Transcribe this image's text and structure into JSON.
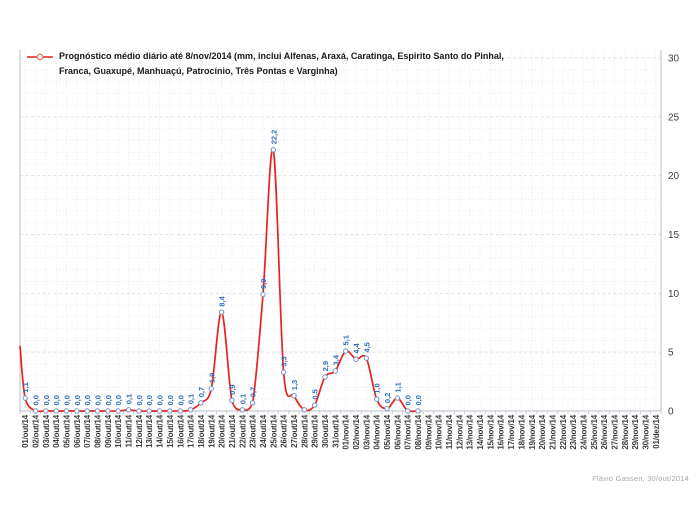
{
  "chart_data": {
    "type": "line",
    "title": "",
    "legend_position": "top-left-inside",
    "y_axis_side": "right",
    "ylim": [
      0,
      30
    ],
    "yticks": [
      0,
      5,
      10,
      15,
      20,
      25,
      30
    ],
    "grid": "vertical dotted per day, horizontal dotted per 1 unit, dashed per 5 units",
    "clipped_entry_value_at_left_edge": 5.5,
    "x_categories": [
      "01/out/14",
      "02/out/14",
      "03/out/14",
      "04/out/14",
      "05/out/14",
      "06/out/14",
      "07/out/14",
      "08/out/14",
      "09/out/14",
      "10/out/14",
      "11/out/14",
      "12/out/14",
      "13/out/14",
      "14/out/14",
      "15/out/14",
      "16/out/14",
      "17/out/14",
      "18/out/14",
      "19/out/14",
      "20/out/14",
      "21/out/14",
      "22/out/14",
      "23/out/14",
      "24/out/14",
      "25/out/14",
      "26/out/14",
      "27/out/14",
      "28/out/14",
      "29/out/14",
      "30/out/14",
      "31/out/14",
      "01/nov/14",
      "02/nov/14",
      "03/nov/14",
      "04/nov/14",
      "05/nov/14",
      "06/nov/14",
      "07/nov/14",
      "08/nov/14",
      "09/nov/14",
      "10/nov/14",
      "11/nov/14",
      "12/nov/14",
      "13/nov/14",
      "14/nov/14",
      "15/nov/14",
      "16/nov/14",
      "17/nov/14",
      "18/nov/14",
      "19/nov/14",
      "20/nov/14",
      "21/nov/14",
      "22/nov/14",
      "23/nov/14",
      "24/nov/14",
      "25/nov/14",
      "26/nov/14",
      "27/nov/14",
      "28/nov/14",
      "29/nov/14",
      "30/nov/14",
      "01/dez/14"
    ],
    "series": [
      {
        "name": "Prognóstico médio diário até 8/nov/2014 (mm, inclui Alfenas, Araxá, Caratinga, Espirito Santo do Pinhal, Franca, Guaxupé, Manhuaçú, Patrocínio, Três Pontas e Varginha)",
        "values": [
          1.1,
          0,
          0,
          0,
          0,
          0,
          0,
          0,
          0,
          0,
          0.1,
          0,
          0,
          0,
          0,
          0,
          0.1,
          0.7,
          1.9,
          8.4,
          0.9,
          0.1,
          0.7,
          9.9,
          22.2,
          3.3,
          1.3,
          0.1,
          0.5,
          2.9,
          3.4,
          5.1,
          4.4,
          4.5,
          1.0,
          0.2,
          1.1,
          0,
          0
        ],
        "point_labels": [
          "1,1",
          "0,0",
          "0,0",
          "0,0",
          "0,0",
          "0,0",
          "0,0",
          "0,0",
          "0,0",
          "0,0",
          "0,1",
          "0,0",
          "0,0",
          "0,0",
          "0,0",
          "0,0",
          "0,1",
          "0,7",
          "1,9",
          "8,4",
          "0,9",
          "0,1",
          "0,7",
          "9,9",
          "22,2",
          "3,3",
          "1,3",
          "",
          "0,5",
          "2,9",
          "3,4",
          "5,1",
          "4,4",
          "4,5",
          "1,0",
          "0,2",
          "1,1",
          "0,0",
          "0,0"
        ]
      }
    ],
    "style": {
      "line_color": "#e8231e",
      "marker_fill": "#ffffff",
      "marker_stroke": "#7492c5",
      "data_label_color": "#2f6db8",
      "axis_text_color": "#3c3c3c",
      "grid_minor_color": "#e7ebf4",
      "grid_major_color": "#dde2ee",
      "axis_line_color": "#b9bfc8"
    }
  },
  "legend": {
    "lines": [
      "Prognóstico médio diário até 8/nov/2014 (mm, inclui Alfenas, Araxá, Caratinga, Espirito Santo do Pinhal,",
      "Franca, Guaxupé, Manhuaçú, Patrocínio, Três Pontas e Varginha)"
    ]
  },
  "footer": {
    "credit": "Flávio Gassen, 30/out/2014"
  }
}
